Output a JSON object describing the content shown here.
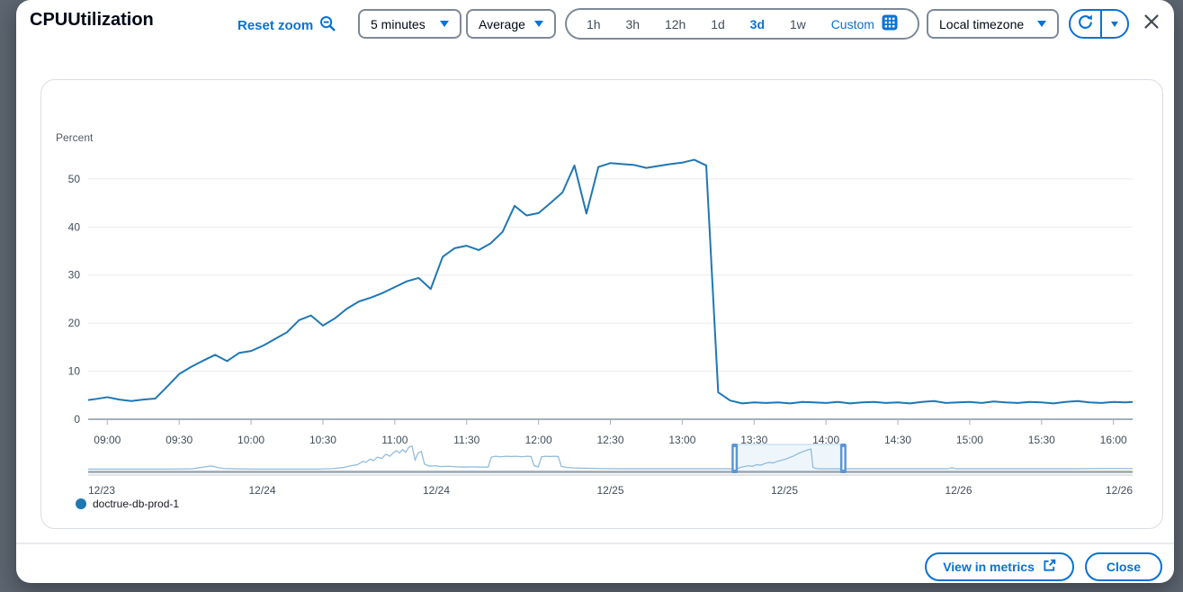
{
  "header": {
    "title": "CPUUtilization",
    "reset_zoom": "Reset zoom",
    "period": {
      "value": "5 minutes"
    },
    "statistic": {
      "value": "Average"
    },
    "time_ranges": [
      "1h",
      "3h",
      "12h",
      "1d",
      "3d",
      "1w"
    ],
    "selected_range": "3d",
    "custom": "Custom",
    "timezone": {
      "value": "Local timezone"
    }
  },
  "footer": {
    "view_in_metrics": "View in metrics",
    "close": "Close"
  },
  "legend": [
    {
      "label": "doctrue-db-prod-1",
      "color": "#1f77b4"
    }
  ],
  "colors": {
    "accent": "#0972d3",
    "line": "#1f77b4",
    "grid": "#e9ebed",
    "axis": "#a4b0ba",
    "tick_text": "#414d5c",
    "spark": "#93bcde",
    "brush": "#5c97d5"
  },
  "chart_data": {
    "type": "line",
    "title": "CPUUtilization",
    "ylabel": "Percent",
    "ylim": [
      0,
      55.6
    ],
    "yticks": [
      0,
      10,
      20,
      30,
      40,
      50
    ],
    "grid": true,
    "legend_position": "bottom-left",
    "x_domain_minutes": [
      532,
      968
    ],
    "xticks": [
      {
        "m": 540,
        "label": "09:00"
      },
      {
        "m": 570,
        "label": "09:30"
      },
      {
        "m": 600,
        "label": "10:00"
      },
      {
        "m": 630,
        "label": "10:30"
      },
      {
        "m": 660,
        "label": "11:00"
      },
      {
        "m": 690,
        "label": "11:30"
      },
      {
        "m": 720,
        "label": "12:00"
      },
      {
        "m": 750,
        "label": "12:30"
      },
      {
        "m": 780,
        "label": "13:00"
      },
      {
        "m": 810,
        "label": "13:30"
      },
      {
        "m": 840,
        "label": "14:00"
      },
      {
        "m": 870,
        "label": "14:30"
      },
      {
        "m": 900,
        "label": "15:00"
      },
      {
        "m": 930,
        "label": "15:30"
      },
      {
        "m": 960,
        "label": "16:00"
      }
    ],
    "series": [
      {
        "name": "doctrue-db-prod-1",
        "color": "#1f77b4",
        "points": [
          [
            532,
            4.0
          ],
          [
            535,
            4.2
          ],
          [
            540,
            4.6
          ],
          [
            545,
            4.1
          ],
          [
            550,
            3.8
          ],
          [
            555,
            4.1
          ],
          [
            560,
            4.3
          ],
          [
            565,
            6.8
          ],
          [
            570,
            9.4
          ],
          [
            575,
            10.9
          ],
          [
            580,
            12.2
          ],
          [
            585,
            13.4
          ],
          [
            590,
            12.1
          ],
          [
            595,
            13.8
          ],
          [
            600,
            14.2
          ],
          [
            605,
            15.3
          ],
          [
            610,
            16.7
          ],
          [
            615,
            18.1
          ],
          [
            620,
            20.6
          ],
          [
            625,
            21.6
          ],
          [
            630,
            19.5
          ],
          [
            635,
            21.0
          ],
          [
            640,
            23.0
          ],
          [
            645,
            24.5
          ],
          [
            650,
            25.3
          ],
          [
            655,
            26.3
          ],
          [
            660,
            27.5
          ],
          [
            665,
            28.7
          ],
          [
            670,
            29.4
          ],
          [
            675,
            27.1
          ],
          [
            680,
            33.8
          ],
          [
            685,
            35.6
          ],
          [
            690,
            36.1
          ],
          [
            695,
            35.2
          ],
          [
            700,
            36.6
          ],
          [
            705,
            39.0
          ],
          [
            710,
            44.4
          ],
          [
            715,
            42.4
          ],
          [
            720,
            42.9
          ],
          [
            725,
            45.0
          ],
          [
            730,
            47.2
          ],
          [
            735,
            52.8
          ],
          [
            740,
            42.8
          ],
          [
            745,
            52.5
          ],
          [
            750,
            53.3
          ],
          [
            755,
            53.1
          ],
          [
            760,
            52.9
          ],
          [
            765,
            52.3
          ],
          [
            770,
            52.7
          ],
          [
            775,
            53.1
          ],
          [
            780,
            53.4
          ],
          [
            785,
            54.0
          ],
          [
            790,
            52.8
          ],
          [
            795,
            5.6
          ],
          [
            800,
            3.9
          ],
          [
            805,
            3.3
          ],
          [
            810,
            3.5
          ],
          [
            815,
            3.4
          ],
          [
            820,
            3.5
          ],
          [
            825,
            3.3
          ],
          [
            830,
            3.6
          ],
          [
            835,
            3.5
          ],
          [
            840,
            3.4
          ],
          [
            845,
            3.6
          ],
          [
            850,
            3.3
          ],
          [
            855,
            3.5
          ],
          [
            860,
            3.6
          ],
          [
            865,
            3.4
          ],
          [
            870,
            3.5
          ],
          [
            875,
            3.3
          ],
          [
            880,
            3.6
          ],
          [
            885,
            3.8
          ],
          [
            890,
            3.4
          ],
          [
            895,
            3.5
          ],
          [
            900,
            3.6
          ],
          [
            905,
            3.4
          ],
          [
            910,
            3.7
          ],
          [
            915,
            3.5
          ],
          [
            920,
            3.4
          ],
          [
            925,
            3.6
          ],
          [
            930,
            3.5
          ],
          [
            935,
            3.3
          ],
          [
            940,
            3.6
          ],
          [
            945,
            3.8
          ],
          [
            950,
            3.5
          ],
          [
            955,
            3.4
          ],
          [
            960,
            3.6
          ],
          [
            965,
            3.5
          ],
          [
            968,
            3.6
          ]
        ]
      }
    ],
    "timeline": {
      "date_labels": [
        "12/23",
        "12/24",
        "12/24",
        "12/25",
        "12/25",
        "12/26",
        "12/26"
      ],
      "brush_fraction": [
        0.619,
        0.723
      ],
      "spark": [
        [
          0,
          2
        ],
        [
          0.04,
          2
        ],
        [
          0.08,
          2
        ],
        [
          0.1,
          3
        ],
        [
          0.112,
          10
        ],
        [
          0.118,
          13
        ],
        [
          0.125,
          7
        ],
        [
          0.13,
          4
        ],
        [
          0.14,
          3
        ],
        [
          0.16,
          2
        ],
        [
          0.19,
          2
        ],
        [
          0.22,
          2
        ],
        [
          0.235,
          4
        ],
        [
          0.245,
          8
        ],
        [
          0.252,
          14
        ],
        [
          0.258,
          18
        ],
        [
          0.263,
          30
        ],
        [
          0.266,
          26
        ],
        [
          0.27,
          38
        ],
        [
          0.273,
          32
        ],
        [
          0.277,
          45
        ],
        [
          0.281,
          40
        ],
        [
          0.285,
          55
        ],
        [
          0.289,
          48
        ],
        [
          0.292,
          60
        ],
        [
          0.295,
          68
        ],
        [
          0.298,
          60
        ],
        [
          0.301,
          72
        ],
        [
          0.304,
          62
        ],
        [
          0.307,
          80
        ],
        [
          0.31,
          85
        ],
        [
          0.313,
          35
        ],
        [
          0.316,
          60
        ],
        [
          0.319,
          65
        ],
        [
          0.322,
          20
        ],
        [
          0.327,
          12
        ],
        [
          0.332,
          14
        ],
        [
          0.338,
          11
        ],
        [
          0.345,
          12
        ],
        [
          0.352,
          10
        ],
        [
          0.36,
          9
        ],
        [
          0.368,
          10
        ],
        [
          0.375,
          9
        ],
        [
          0.383,
          9
        ],
        [
          0.386,
          45
        ],
        [
          0.39,
          48
        ],
        [
          0.395,
          46
        ],
        [
          0.4,
          48
        ],
        [
          0.405,
          47
        ],
        [
          0.41,
          48
        ],
        [
          0.415,
          46
        ],
        [
          0.42,
          48
        ],
        [
          0.424,
          47
        ],
        [
          0.427,
          14
        ],
        [
          0.431,
          10
        ],
        [
          0.434,
          46
        ],
        [
          0.438,
          48
        ],
        [
          0.442,
          47
        ],
        [
          0.446,
          48
        ],
        [
          0.45,
          47
        ],
        [
          0.453,
          12
        ],
        [
          0.458,
          8
        ],
        [
          0.465,
          6
        ],
        [
          0.475,
          5
        ],
        [
          0.49,
          4
        ],
        [
          0.51,
          3
        ],
        [
          0.54,
          3
        ],
        [
          0.57,
          3
        ],
        [
          0.6,
          3
        ],
        [
          0.619,
          3
        ],
        [
          0.623,
          6
        ],
        [
          0.627,
          10
        ],
        [
          0.632,
          14
        ],
        [
          0.636,
          12
        ],
        [
          0.64,
          18
        ],
        [
          0.644,
          16
        ],
        [
          0.648,
          22
        ],
        [
          0.652,
          26
        ],
        [
          0.656,
          24
        ],
        [
          0.66,
          30
        ],
        [
          0.664,
          34
        ],
        [
          0.668,
          38
        ],
        [
          0.672,
          44
        ],
        [
          0.676,
          50
        ],
        [
          0.68,
          58
        ],
        [
          0.684,
          64
        ],
        [
          0.687,
          68
        ],
        [
          0.69,
          72
        ],
        [
          0.692,
          74
        ],
        [
          0.694,
          8
        ],
        [
          0.697,
          4
        ],
        [
          0.7,
          3
        ],
        [
          0.72,
          3
        ],
        [
          0.75,
          3
        ],
        [
          0.78,
          3
        ],
        [
          0.81,
          3
        ],
        [
          0.823,
          3
        ],
        [
          0.827,
          7
        ],
        [
          0.831,
          3
        ],
        [
          0.86,
          3
        ],
        [
          0.9,
          3
        ],
        [
          0.94,
          3
        ],
        [
          0.97,
          4
        ],
        [
          1,
          4
        ]
      ]
    }
  }
}
